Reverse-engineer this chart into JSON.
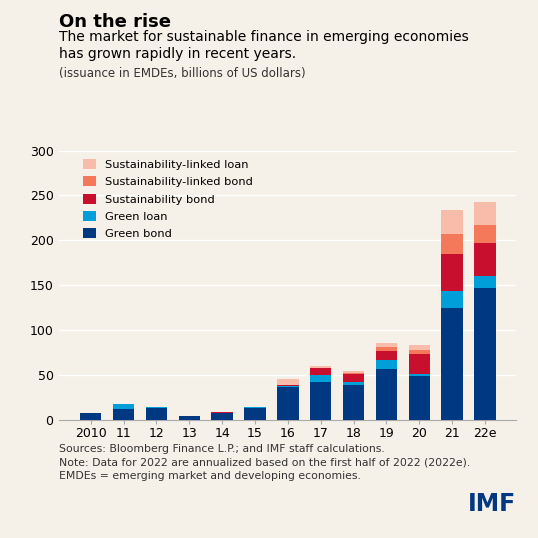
{
  "title_bold": "On the rise",
  "subtitle": "The market for sustainable finance in emerging economies\nhas grown rapidly in recent years.",
  "subtitle_sub": "(issuance in EMDEs, billions of US dollars)",
  "categories": [
    "2010",
    "11",
    "12",
    "13",
    "14",
    "15",
    "16",
    "17",
    "18",
    "19",
    "20",
    "21",
    "22e"
  ],
  "green_bond": [
    7,
    12,
    13,
    4,
    7,
    13,
    36,
    42,
    39,
    57,
    49,
    125,
    147
  ],
  "green_loan": [
    0,
    5,
    1,
    0,
    0,
    1,
    2,
    8,
    3,
    9,
    2,
    18,
    13
  ],
  "sustainability_bond": [
    0,
    0,
    0,
    0,
    1,
    0,
    1,
    8,
    9,
    10,
    22,
    42,
    37
  ],
  "sustainability_linked_bond": [
    0,
    0,
    0,
    0,
    0,
    0,
    0,
    0,
    1,
    5,
    5,
    22,
    20
  ],
  "sustainability_linked_loan": [
    0,
    0,
    0,
    0,
    0,
    0,
    6,
    2,
    2,
    5,
    5,
    27,
    26
  ],
  "colors": {
    "green_bond": "#003882",
    "green_loan": "#009FDA",
    "sustainability_bond": "#C8102E",
    "sustainability_linked_bond": "#F4785A",
    "sustainability_linked_loan": "#FABCAA"
  },
  "legend_labels": [
    "Sustainability-linked loan",
    "Sustainability-linked bond",
    "Sustainability bond",
    "Green loan",
    "Green bond"
  ],
  "ylim": [
    0,
    300
  ],
  "yticks": [
    0,
    50,
    100,
    150,
    200,
    250,
    300
  ],
  "footnote": "Sources: Bloomberg Finance L.P.; and IMF staff calculations.\nNote: Data for 2022 are annualized based on the first half of 2022 (2022e).\nEMDEs = emerging market and developing economies.",
  "background_color": "#F5F0E8",
  "bar_width": 0.65
}
